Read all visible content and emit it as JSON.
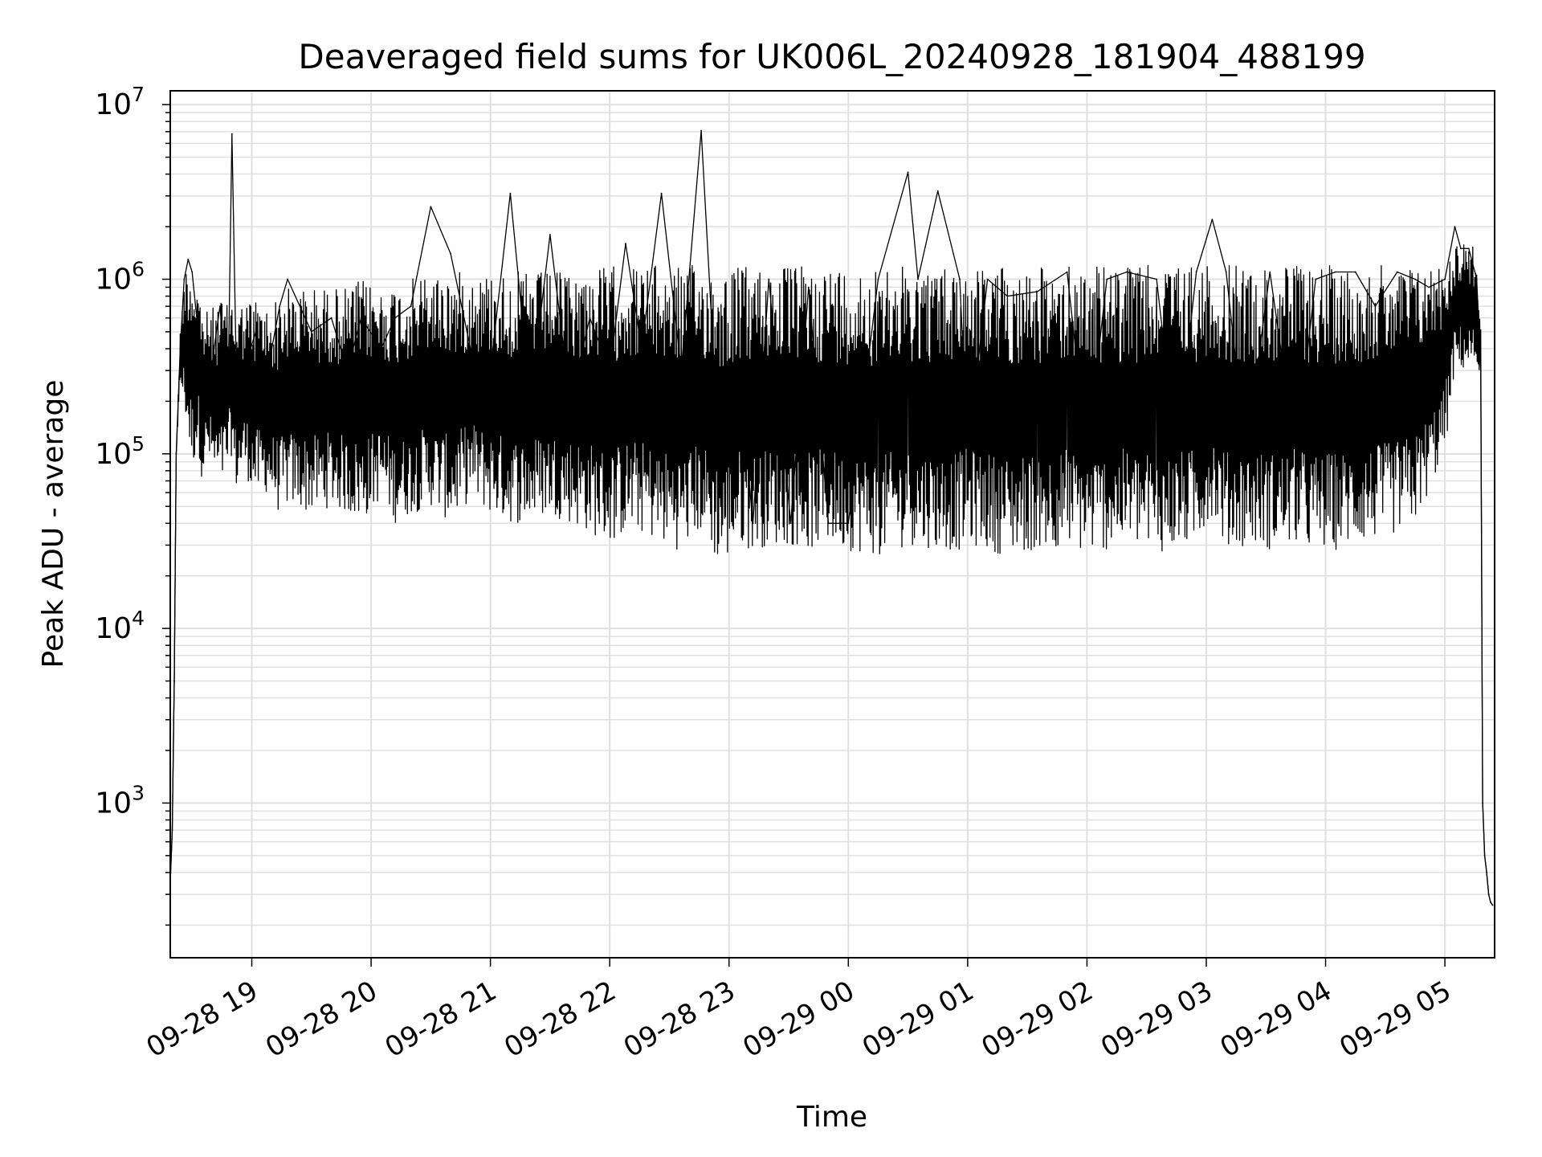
{
  "chart_data": {
    "type": "line",
    "title": "Deaveraged field sums for UK006L_20240928_181904_488199",
    "xlabel": "Time",
    "ylabel": "Peak ADU - average",
    "yscale": "log",
    "ylim": [
      130,
      12000000
    ],
    "xlim": [
      "2024-09-28 18:19",
      "2024-09-29 05:25"
    ],
    "grid": true,
    "line_color": "#000000",
    "grid_color": "#e0e0e0",
    "x_ticks": [
      {
        "t": "2024-09-28 19:00",
        "label": "09-28 19"
      },
      {
        "t": "2024-09-28 20:00",
        "label": "09-28 20"
      },
      {
        "t": "2024-09-28 21:00",
        "label": "09-28 21"
      },
      {
        "t": "2024-09-28 22:00",
        "label": "09-28 22"
      },
      {
        "t": "2024-09-28 23:00",
        "label": "09-28 23"
      },
      {
        "t": "2024-09-29 00:00",
        "label": "09-29 00"
      },
      {
        "t": "2024-09-29 01:00",
        "label": "09-29 01"
      },
      {
        "t": "2024-09-29 02:00",
        "label": "09-29 02"
      },
      {
        "t": "2024-09-29 03:00",
        "label": "09-29 03"
      },
      {
        "t": "2024-09-29 04:00",
        "label": "09-29 04"
      },
      {
        "t": "2024-09-29 05:00",
        "label": "09-29 05"
      }
    ],
    "y_ticks": [
      {
        "value": 1000,
        "base": "10",
        "exp": "3"
      },
      {
        "value": 10000,
        "base": "10",
        "exp": "4"
      },
      {
        "value": 100000,
        "base": "10",
        "exp": "5"
      },
      {
        "value": 1000000,
        "base": "10",
        "exp": "6"
      },
      {
        "value": 10000000,
        "base": "10",
        "exp": "7"
      }
    ],
    "series": [
      {
        "x": [
          "2024-09-28 18:19",
          "2024-09-28 18:20",
          "2024-09-28 18:21",
          "2024-09-28 18:22",
          "2024-09-28 18:24",
          "2024-09-28 18:26",
          "2024-09-28 18:28",
          "2024-09-28 18:30",
          "2024-09-28 18:33",
          "2024-09-28 18:35",
          "2024-09-28 18:38",
          "2024-09-28 18:41",
          "2024-09-28 18:44",
          "2024-09-28 18:48",
          "2024-09-28 18:50",
          "2024-09-28 18:52",
          "2024-09-28 18:56",
          "2024-09-28 19:02",
          "2024-09-28 19:08",
          "2024-09-28 19:14",
          "2024-09-28 19:18",
          "2024-09-28 19:30",
          "2024-09-28 19:40",
          "2024-09-28 19:48",
          "2024-09-28 19:55",
          "2024-09-28 20:05",
          "2024-09-28 20:12",
          "2024-09-28 20:20",
          "2024-09-28 20:30",
          "2024-09-28 20:40",
          "2024-09-28 20:50",
          "2024-09-28 21:00",
          "2024-09-28 21:10",
          "2024-09-28 21:20",
          "2024-09-28 21:30",
          "2024-09-28 21:40",
          "2024-09-28 21:50",
          "2024-09-28 22:00",
          "2024-09-28 22:08",
          "2024-09-28 22:16",
          "2024-09-28 22:26",
          "2024-09-28 22:36",
          "2024-09-28 22:46",
          "2024-09-28 22:56",
          "2024-09-28 23:05",
          "2024-09-28 23:12",
          "2024-09-28 23:20",
          "2024-09-28 23:31",
          "2024-09-28 23:40",
          "2024-09-28 23:50",
          "2024-09-29 00:00",
          "2024-09-29 00:15",
          "2024-09-29 00:30",
          "2024-09-29 00:35",
          "2024-09-29 00:45",
          "2024-09-29 00:56",
          "2024-09-29 01:00",
          "2024-09-29 01:10",
          "2024-09-29 01:20",
          "2024-09-29 01:35",
          "2024-09-29 01:50",
          "2024-09-29 02:00",
          "2024-09-29 02:10",
          "2024-09-29 02:20",
          "2024-09-29 02:35",
          "2024-09-29 02:45",
          "2024-09-29 02:55",
          "2024-09-29 03:03",
          "2024-09-29 03:10",
          "2024-09-29 03:20",
          "2024-09-29 03:32",
          "2024-09-29 03:45",
          "2024-09-29 03:55",
          "2024-09-29 04:05",
          "2024-09-29 04:15",
          "2024-09-29 04:25",
          "2024-09-29 04:36",
          "2024-09-29 04:45",
          "2024-09-29 04:52",
          "2024-09-29 05:00",
          "2024-09-29 05:05",
          "2024-09-29 05:08",
          "2024-09-29 05:12",
          "2024-09-29 05:16",
          "2024-09-29 05:18",
          "2024-09-29 05:19",
          "2024-09-29 05:20",
          "2024-09-29 05:21",
          "2024-09-29 05:22",
          "2024-09-29 05:23",
          "2024-09-29 05:24"
        ],
        "y": [
          350,
          700,
          5000,
          100000,
          400000,
          1000000,
          1300000,
          1100000,
          500000,
          300000,
          200000,
          400000,
          700000,
          200000,
          6800000,
          400000,
          300000,
          500000,
          300000,
          700000,
          1000000,
          500000,
          600000,
          300000,
          600000,
          400000,
          600000,
          700000,
          2600000,
          1400000,
          400000,
          300000,
          3100000,
          200000,
          1800000,
          200000,
          600000,
          300000,
          1600000,
          400000,
          3100000,
          300000,
          7100000,
          60000,
          300000,
          40000,
          1000000,
          40000,
          900000,
          40000,
          40000,
          1000000,
          4100000,
          1000000,
          3200000,
          1000000,
          100000,
          1000000,
          800000,
          850000,
          1100000,
          100000,
          1000000,
          1100000,
          1000000,
          100000,
          1100000,
          2200000,
          1100000,
          100000,
          1100000,
          100000,
          1000000,
          1100000,
          1100000,
          700000,
          1100000,
          1000000,
          900000,
          1000000,
          2000000,
          1500000,
          1500000,
          1000000,
          300000,
          1000,
          500,
          400,
          300,
          270,
          260
        ],
        "band_low": [
          350,
          700,
          5000,
          100000,
          250000,
          180000,
          120000,
          80000,
          110000,
          70000,
          90000,
          70000,
          60000,
          80000,
          100000,
          60000,
          80000,
          55000,
          60000,
          45000,
          50000,
          45000,
          50000,
          45000,
          40000,
          55000,
          40000,
          45000,
          50000,
          40000,
          55000,
          45000,
          40000,
          40000,
          45000,
          40000,
          35000,
          30000,
          35000,
          35000,
          30000,
          28000,
          35000,
          22000,
          30000,
          28000,
          30000,
          30000,
          28000,
          30000,
          28000,
          26000,
          30000,
          30000,
          28000,
          28000,
          30000,
          28000,
          26000,
          28000,
          30000,
          26000,
          28000,
          30000,
          27000,
          28000,
          30000,
          45000,
          28000,
          30000,
          28000,
          30000,
          27000,
          28000,
          30000,
          32000,
          35000,
          40000,
          60000,
          100000,
          300000,
          300000,
          300000,
          300000,
          300000,
          1000,
          500,
          400,
          300,
          270,
          260
        ],
        "band_high": [
          350,
          700,
          5000,
          100000,
          500000,
          1100000,
          1300000,
          1200000,
          1000000,
          700000,
          650000,
          700000,
          800000,
          700000,
          800000,
          700000,
          750000,
          800000,
          700000,
          800000,
          900000,
          900000,
          900000,
          900000,
          1000000,
          900000,
          950000,
          1000000,
          1100000,
          1100000,
          1100000,
          1100000,
          1100000,
          1100000,
          1100000,
          1100000,
          1150000,
          1200000,
          1200000,
          1200000,
          1200000,
          1200000,
          1200000,
          1200000,
          1200000,
          1200000,
          1200000,
          1200000,
          1200000,
          1200000,
          1200000,
          1200000,
          1200000,
          1200000,
          1200000,
          1200000,
          1200000,
          1200000,
          1200000,
          1200000,
          1200000,
          1200000,
          1200000,
          1200000,
          1200000,
          1200000,
          1200000,
          1200000,
          1200000,
          1200000,
          1200000,
          1200000,
          1200000,
          1200000,
          1200000,
          1200000,
          1200000,
          1200000,
          1200000,
          1300000,
          1600000,
          1700000,
          1700000,
          1400000,
          600000,
          1000,
          500,
          400,
          300,
          270,
          260
        ]
      }
    ]
  }
}
